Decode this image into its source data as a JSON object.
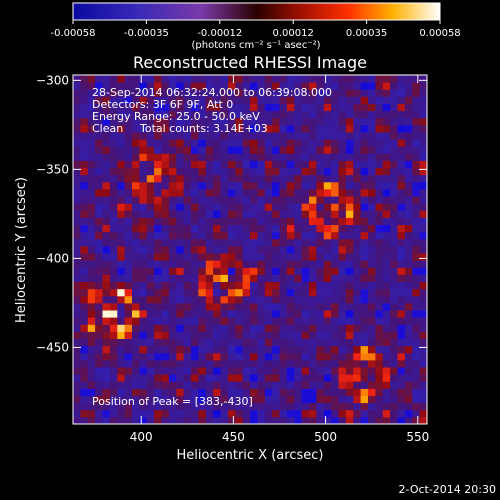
{
  "colorbar": {
    "tick_labels": [
      "-0.00058",
      "-0.00035",
      "-0.00012",
      "0.00012",
      "0.00035",
      "0.00058"
    ],
    "unit_label": "(photons cm⁻² s⁻¹ asec⁻²)"
  },
  "chart_data": {
    "type": "heatmap",
    "title": "Reconstructed RHESSI Image",
    "xlabel": "Heliocentric X (arcsec)",
    "ylabel": "Heliocentric Y (arcsec)",
    "xlim": [
      363,
      555
    ],
    "ylim": [
      -493,
      -297
    ],
    "x_ticks": [
      400,
      450,
      500,
      550
    ],
    "y_ticks": [
      -300,
      -350,
      -400,
      -450
    ],
    "x_tick_labels": [
      "400",
      "450",
      "500",
      "550"
    ],
    "y_tick_labels": [
      "−300",
      "−350",
      "−400",
      "−450"
    ],
    "value_range": [
      -0.00058,
      0.00058
    ],
    "sources": [
      {
        "x": 383,
        "y": -430
      },
      {
        "x": 445,
        "y": -412
      },
      {
        "x": 520,
        "y": -465
      },
      {
        "x": 503,
        "y": -372
      },
      {
        "x": 407,
        "y": -355
      }
    ],
    "peak": {
      "x": 383,
      "y": -430
    }
  },
  "annotations": {
    "time_range": "28-Sep-2014 06:32:24.000 to 06:39:08.000",
    "detectors": "Detectors: 3F 6F 9F, Att 0",
    "energy": "Energy Range: 25.0 - 50.0 keV",
    "method": "Clean",
    "total_counts": "Total counts: 3.14E+03",
    "peak_position": "Position of Peak = [383,-430]"
  },
  "timestamp": "2-Oct-2014 20:30"
}
